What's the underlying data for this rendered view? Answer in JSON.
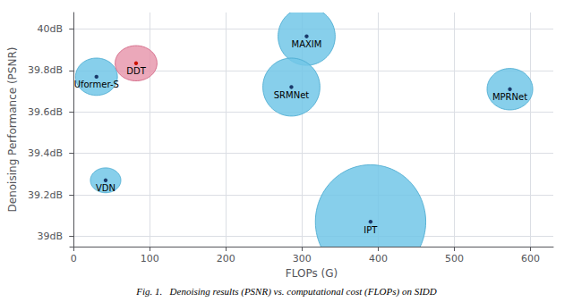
{
  "chart_data": {
    "type": "scatter",
    "xlabel": "FLOPs (G)",
    "ylabel": "Denoising Performance (PSNR)",
    "caption": "Fig. 1.   Denoising results (PSNR) vs. computational cost (FLOPs) on SIDD",
    "points": [
      {
        "name": "Uformer-S",
        "x": 30,
        "y": 39.77,
        "width": 55,
        "height": 0.18,
        "color": "#72c7e8",
        "edge_color": "#4aaad0",
        "marker_color": "#1a3a6b"
      },
      {
        "name": "DDT",
        "x": 82,
        "y": 39.835,
        "width": 55,
        "height": 0.17,
        "color": "#e899ae",
        "edge_color": "#d06080",
        "marker_color": "#cc1100"
      },
      {
        "name": "VDN",
        "x": 42,
        "y": 39.27,
        "width": 40,
        "height": 0.12,
        "color": "#72c7e8",
        "edge_color": "#4aaad0",
        "marker_color": "#1a3a6b"
      },
      {
        "name": "MAXIM",
        "x": 306,
        "y": 39.965,
        "width": 75,
        "height": 0.28,
        "color": "#72c7e8",
        "edge_color": "#4aaad0",
        "marker_color": "#1a3a6b"
      },
      {
        "name": "SRMNet",
        "x": 286,
        "y": 39.72,
        "width": 75,
        "height": 0.28,
        "color": "#72c7e8",
        "edge_color": "#4aaad0",
        "marker_color": "#1a3a6b"
      },
      {
        "name": "IPT",
        "x": 390,
        "y": 39.07,
        "width": 145,
        "height": 0.55,
        "color": "#72c7e8",
        "edge_color": "#4aaad0",
        "marker_color": "#1a3a6b"
      },
      {
        "name": "MPRNet",
        "x": 573,
        "y": 39.71,
        "width": 60,
        "height": 0.2,
        "color": "#72c7e8",
        "edge_color": "#4aaad0",
        "marker_color": "#1a3a6b"
      }
    ],
    "xlim": [
      -5,
      630
    ],
    "ylim": [
      38.95,
      40.08
    ],
    "xticks": [
      0,
      100,
      200,
      300,
      400,
      500,
      600
    ],
    "yticks": [
      {
        "value": 39.0,
        "label": "39dB"
      },
      {
        "value": 39.2,
        "label": "39.2dB"
      },
      {
        "value": 39.4,
        "label": "39.4dB"
      },
      {
        "value": 39.6,
        "label": "39.6dB"
      },
      {
        "value": 39.8,
        "label": "39.8dB"
      },
      {
        "value": 40.0,
        "label": "40dB"
      }
    ],
    "grid": true
  }
}
